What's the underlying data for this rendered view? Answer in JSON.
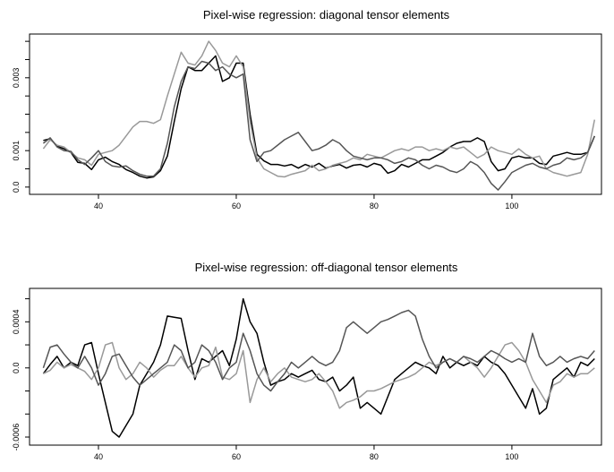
{
  "chart_data": [
    {
      "type": "line",
      "title": "Pixel-wise regression: diagonal tensor elements",
      "xlabel": "",
      "ylabel": "",
      "xlim": [
        30,
        113
      ],
      "ylim": [
        -0.0002,
        0.0042
      ],
      "x_ticks": [
        40,
        60,
        80,
        100
      ],
      "y_ticks": [
        0.0,
        0.001,
        0.003
      ],
      "y_tick_labels": [
        "0.0",
        "0.001",
        "0.003"
      ],
      "y_minor_ticks": [
        0.0005,
        0.0015,
        0.002,
        0.0025,
        0.0035,
        0.004
      ],
      "grid": false,
      "legend": "none",
      "x_start": 32,
      "x_step": 1,
      "series": [
        {
          "color": "#000000",
          "values": [
            0.00128,
            0.00133,
            0.00112,
            0.00105,
            0.00095,
            0.00068,
            0.00065,
            0.00048,
            0.00075,
            0.00082,
            0.0007,
            0.00062,
            0.00048,
            0.0004,
            0.0003,
            0.00025,
            0.00028,
            0.00045,
            0.00085,
            0.0018,
            0.0027,
            0.0033,
            0.0032,
            0.0032,
            0.0034,
            0.0036,
            0.0029,
            0.003,
            0.0034,
            0.0034,
            0.002,
            0.0009,
            0.00072,
            0.00062,
            0.00062,
            0.00058,
            0.00062,
            0.00052,
            0.00062,
            0.00055,
            0.00065,
            0.00052,
            0.00058,
            0.00062,
            0.00052,
            0.0006,
            0.00062,
            0.00055,
            0.00065,
            0.0006,
            0.00038,
            0.00045,
            0.00062,
            0.00055,
            0.00065,
            0.00075,
            0.00075,
            0.00085,
            0.00095,
            0.0011,
            0.0012,
            0.00125,
            0.00125,
            0.00135,
            0.00125,
            0.0007,
            0.00045,
            0.0005,
            0.0008,
            0.00085,
            0.0008,
            0.0008,
            0.00065,
            0.00062,
            0.00085,
            0.0009,
            0.00095,
            0.0009,
            0.0009,
            0.00095,
            0.0014
          ]
        },
        {
          "color": "#999999",
          "values": [
            0.00105,
            0.0013,
            0.00115,
            0.0011,
            0.00095,
            0.0008,
            0.00075,
            0.0006,
            0.0009,
            0.00095,
            0.001,
            0.00115,
            0.0014,
            0.00165,
            0.0018,
            0.0018,
            0.00175,
            0.00185,
            0.0025,
            0.0031,
            0.0037,
            0.0034,
            0.00335,
            0.0036,
            0.004,
            0.00375,
            0.0034,
            0.0033,
            0.0036,
            0.0033,
            0.0018,
            0.0008,
            0.0005,
            0.0004,
            0.0003,
            0.00028,
            0.00035,
            0.0004,
            0.00045,
            0.0006,
            0.00045,
            0.0005,
            0.0006,
            0.00065,
            0.0007,
            0.0008,
            0.00075,
            0.0009,
            0.00085,
            0.0008,
            0.0009,
            0.001,
            0.00105,
            0.001,
            0.0011,
            0.0011,
            0.001,
            0.00105,
            0.001,
            0.0011,
            0.00105,
            0.0011,
            0.00095,
            0.0008,
            0.0009,
            0.0011,
            0.001,
            0.00095,
            0.0009,
            0.00105,
            0.0009,
            0.0008,
            0.00085,
            0.0005,
            0.0004,
            0.00035,
            0.0003,
            0.00035,
            0.0004,
            0.0009,
            0.00185
          ]
        },
        {
          "color": "#555555",
          "values": [
            0.0012,
            0.00135,
            0.0011,
            0.001,
            0.00098,
            0.00075,
            0.00062,
            0.0008,
            0.001,
            0.0007,
            0.00058,
            0.00055,
            0.00058,
            0.00045,
            0.00035,
            0.0003,
            0.0003,
            0.0005,
            0.0012,
            0.0022,
            0.0029,
            0.0033,
            0.00325,
            0.00345,
            0.0034,
            0.0032,
            0.0033,
            0.0031,
            0.003,
            0.0031,
            0.0013,
            0.0007,
            0.00095,
            0.001,
            0.00115,
            0.0013,
            0.0014,
            0.0015,
            0.00125,
            0.001,
            0.00105,
            0.00115,
            0.0013,
            0.0012,
            0.001,
            0.00085,
            0.0008,
            0.00075,
            0.0008,
            0.0008,
            0.00075,
            0.00065,
            0.0007,
            0.0008,
            0.00075,
            0.0006,
            0.0005,
            0.0006,
            0.00055,
            0.00045,
            0.0004,
            0.0005,
            0.0007,
            0.0006,
            0.0004,
            0.0001,
            -8e-05,
            0.00015,
            0.0004,
            0.0005,
            0.0006,
            0.00065,
            0.00055,
            0.0005,
            0.0006,
            0.00065,
            0.0008,
            0.00075,
            0.0008,
            0.00095,
            0.0014
          ]
        }
      ]
    },
    {
      "type": "line",
      "title": "Pixel-wise regression: off-diagonal tensor elements",
      "xlabel": "",
      "ylabel": "",
      "xlim": [
        30,
        113
      ],
      "ylim": [
        -0.00067,
        0.00069
      ],
      "x_ticks": [
        40,
        60,
        80,
        100
      ],
      "y_ticks": [
        -0.0006,
        0.0,
        0.0004
      ],
      "y_tick_labels": [
        "-0.0006",
        "0.0",
        "0.0004"
      ],
      "y_minor_ticks": [
        -0.0004,
        -0.0002,
        0.0002,
        0.0006
      ],
      "grid": false,
      "legend": "none",
      "x_start": 32,
      "x_step": 1,
      "series": [
        {
          "color": "#000000",
          "values": [
            -5e-05,
            3e-05,
            0.0001,
            0.0,
            5e-05,
            2e-05,
            0.0002,
            0.00022,
            -5e-05,
            -0.0003,
            -0.00055,
            -0.0006,
            -0.0005,
            -0.0004,
            -0.00015,
            -5e-05,
            5e-05,
            0.0002,
            0.00045,
            0.00044,
            0.00043,
            0.00015,
            -0.0001,
            8e-05,
            5e-05,
            0.0001,
            0.00015,
            2e-05,
            0.00025,
            0.0006,
            0.0004,
            0.0003,
            5e-05,
            -0.00015,
            -0.00012,
            -0.0001,
            -5e-05,
            -8e-05,
            -5e-05,
            -2e-05,
            -0.0001,
            -0.00012,
            -8e-05,
            -0.0002,
            -0.00015,
            -8e-05,
            -0.00035,
            -0.0003,
            -0.00035,
            -0.0004,
            -0.00025,
            -0.0001,
            -5e-05,
            0.0,
            5e-05,
            2e-05,
            0.0,
            -5e-05,
            0.0001,
            0.0,
            5e-05,
            2e-05,
            5e-05,
            2e-05,
            0.0001,
            5e-05,
            2e-05,
            -5e-05,
            -0.00015,
            -0.00025,
            -0.00035,
            -0.00018,
            -0.0004,
            -0.00035,
            -0.0001,
            -5e-05,
            0.0,
            -8e-05,
            5e-05,
            2e-05,
            8e-05
          ]
        },
        {
          "color": "#999999",
          "values": [
            -5e-05,
            -2e-05,
            5e-05,
            0.0,
            3e-05,
            0.0,
            -3e-05,
            -0.0001,
            0.0,
            0.0002,
            0.00022,
            0.0,
            -0.0001,
            -5e-05,
            5e-05,
            0.0,
            -8e-05,
            -2e-05,
            2e-05,
            2e-05,
            0.0001,
            0.0,
            -8e-05,
            0.0,
            2e-05,
            0.00018,
            -8e-05,
            -0.0001,
            -5e-05,
            0.00015,
            -0.0003,
            -0.0001,
            0.0,
            -0.00012,
            -5e-05,
            0.0,
            -8e-05,
            -0.0001,
            -0.00012,
            -0.0001,
            -5e-05,
            -0.00012,
            -0.0002,
            -0.00035,
            -0.0003,
            -0.00028,
            -0.00025,
            -0.0002,
            -0.0002,
            -0.00018,
            -0.00015,
            -0.00012,
            -0.0001,
            -8e-05,
            -5e-05,
            0.0,
            5e-05,
            2e-05,
            5e-05,
            8e-05,
            5e-05,
            0.0001,
            5e-05,
            0.0,
            -8e-05,
            0.0,
            0.0001,
            0.0002,
            0.00022,
            0.00015,
            5e-05,
            -0.0001,
            -0.0002,
            -0.0003,
            -0.00015,
            -0.00012,
            -5e-05,
            -8e-05,
            -5e-05,
            -5e-05,
            0.0
          ]
        },
        {
          "color": "#555555",
          "values": [
            0.0,
            0.00018,
            0.0002,
            0.00012,
            5e-05,
            0.0,
            0.0001,
            0.0,
            -0.00015,
            -5e-05,
            0.0001,
            0.00012,
            2e-05,
            -8e-05,
            -0.00015,
            -0.0001,
            -5e-05,
            0.0,
            5e-05,
            0.0002,
            0.00015,
            0.0,
            5e-05,
            0.0002,
            0.00015,
            5e-05,
            -0.0001,
            0.0,
            5e-05,
            0.0003,
            0.00015,
            -5e-05,
            -0.00015,
            -0.0002,
            -0.00012,
            -5e-05,
            5e-05,
            0.0,
            5e-05,
            0.0001,
            5e-05,
            2e-05,
            5e-05,
            0.00015,
            0.00035,
            0.0004,
            0.00035,
            0.0003,
            0.00035,
            0.0004,
            0.00042,
            0.00045,
            0.00048,
            0.0005,
            0.00045,
            0.00025,
            0.0001,
            0.0,
            5e-05,
            8e-05,
            5e-05,
            0.0001,
            8e-05,
            5e-05,
            0.0001,
            0.00015,
            0.00012,
            8e-05,
            5e-05,
            8e-05,
            5e-05,
            0.0003,
            0.0001,
            2e-05,
            5e-05,
            0.0001,
            5e-05,
            8e-05,
            0.0001,
            8e-05,
            0.00015
          ]
        }
      ]
    }
  ]
}
